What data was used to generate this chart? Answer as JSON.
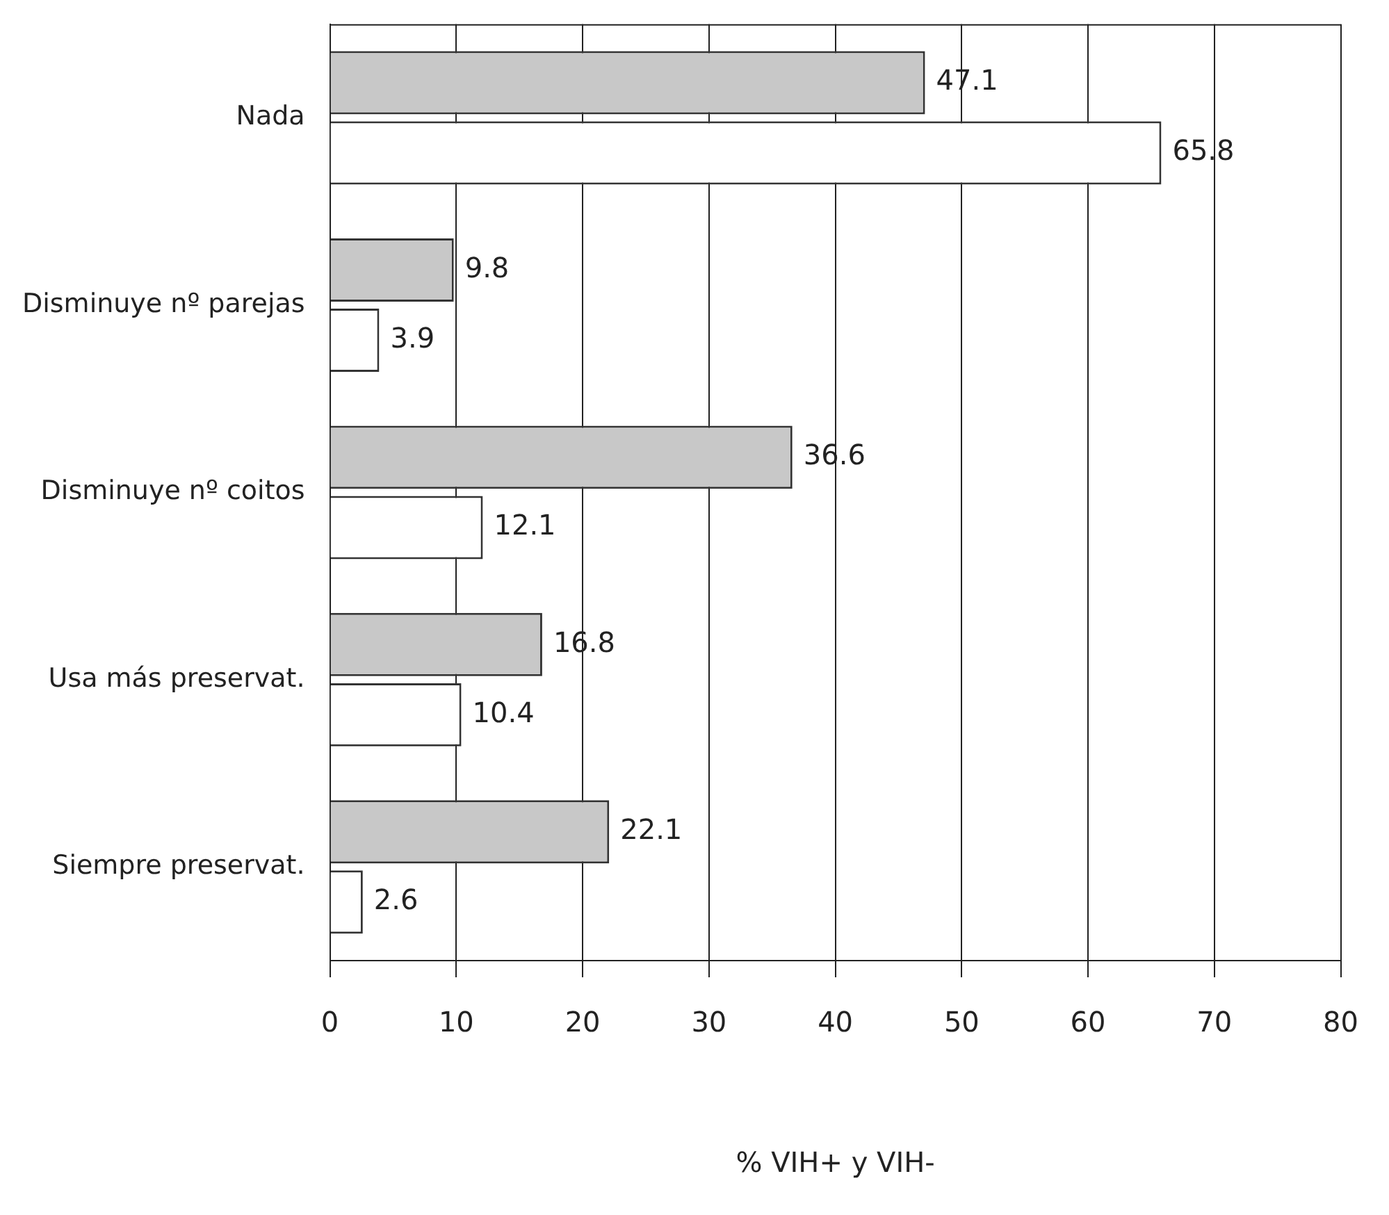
{
  "chart_data": {
    "type": "bar",
    "orientation": "horizontal",
    "xlabel": "% VIH+ y VIH-",
    "categories": [
      "Nada",
      "Disminuye nº parejas",
      "Disminuye nº coitos",
      "Usa más preservat.",
      "Siempre preservat."
    ],
    "series": [
      {
        "color": "#c8c8c8",
        "values": [
          47.1,
          9.8,
          36.6,
          16.8,
          22.1
        ]
      },
      {
        "color": "#ffffff",
        "values": [
          65.8,
          3.9,
          12.1,
          10.4,
          2.6
        ]
      }
    ],
    "xlim": [
      0,
      80
    ],
    "xticks": [
      0,
      10,
      20,
      30,
      40,
      50,
      60,
      70,
      80
    ],
    "grid": "x",
    "data_labels": true,
    "legend": false
  }
}
